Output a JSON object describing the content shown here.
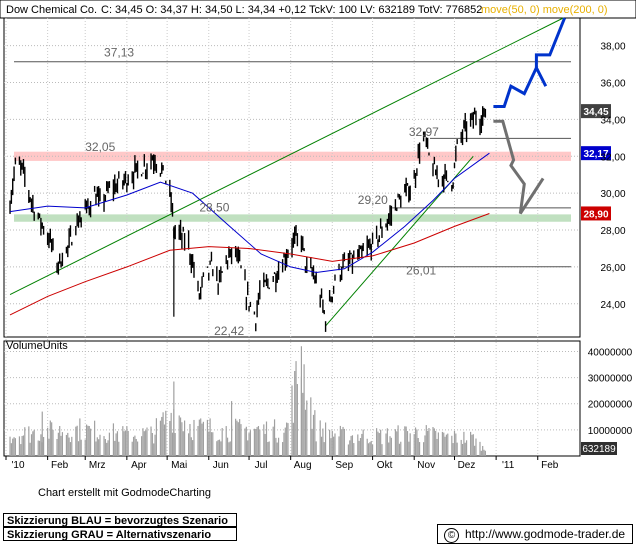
{
  "header": {
    "instrument": "Dow Chemical Co.",
    "quote": "C: 34,45 O: 34,37 H: 34,50 L: 34,34 +0,12 TckV: 100 LV: 632189 TotV: 776852",
    "ma_legend": "move(50, 0)  move(200, 0)"
  },
  "footer": {
    "credit": "Chart erstellt mit GodmodeCharting",
    "legend_blue": "Skizzierung BLAU = bevorzugtes Szenario",
    "legend_grey": "Skizzierung GRAU = Alternativszenario",
    "copyright_symbol": "©",
    "url": "http://www.godmode-trader.de"
  },
  "volume_panel": {
    "label": "VolumeUnits"
  },
  "colors": {
    "price": "#000000",
    "ma50": "#0000cc",
    "ma200": "#cc0000",
    "trend": "#008000",
    "resistance_band": "#ffc8c8",
    "support_band": "#c0e0c0",
    "scenario_blue": "#0033cc",
    "scenario_grey": "#707070",
    "last_price_tag": "#404040",
    "ma50_tag": "#0000cc",
    "ma200_tag": "#cc0000"
  },
  "chart_data": [
    {
      "type": "ohlc",
      "title": "Dow Chemical Co.",
      "y_axis_side": "right",
      "ylim": [
        22.2,
        39.5
      ],
      "y_ticks": [
        "24,00",
        "26,00",
        "28,00",
        "30,00",
        "32,00",
        "34,00",
        "36,00",
        "38,00"
      ],
      "x_ticks": [
        "'10",
        "Feb",
        "Mrz",
        "Apr",
        "Mai",
        "Jun",
        "Jul",
        "Aug",
        "Sep",
        "Okt",
        "Nov",
        "Dez",
        "'11",
        "Feb"
      ],
      "x_range": [
        "2010-01-01",
        "2011-02-28"
      ],
      "price_path_daily_close": [
        [
          "2010-01-04",
          29.5
        ],
        [
          "2010-01-08",
          31.5
        ],
        [
          "2010-01-13",
          31.3
        ],
        [
          "2010-01-20",
          29.6
        ],
        [
          "2010-01-26",
          28.5
        ],
        [
          "2010-01-29",
          28.2
        ],
        [
          "2010-02-04",
          27.2
        ],
        [
          "2010-02-08",
          26.1
        ],
        [
          "2010-02-16",
          27.0
        ],
        [
          "2010-02-22",
          28.3
        ],
        [
          "2010-03-01",
          29.0
        ],
        [
          "2010-03-08",
          29.9
        ],
        [
          "2010-03-12",
          29.4
        ],
        [
          "2010-03-19",
          30.2
        ],
        [
          "2010-03-26",
          30.5
        ],
        [
          "2010-04-01",
          30.8
        ],
        [
          "2010-04-08",
          31.2
        ],
        [
          "2010-04-15",
          31.5
        ],
        [
          "2010-04-20",
          31.9
        ],
        [
          "2010-04-23",
          31.8
        ],
        [
          "2010-04-27",
          31.2
        ],
        [
          "2010-04-30",
          30.7
        ],
        [
          "2010-05-04",
          29.6
        ],
        [
          "2010-05-06",
          28.0
        ],
        [
          "2010-05-11",
          27.7
        ],
        [
          "2010-05-17",
          27.2
        ],
        [
          "2010-05-21",
          25.8
        ],
        [
          "2010-05-25",
          24.4
        ],
        [
          "2010-05-28",
          25.3
        ],
        [
          "2010-06-03",
          26.0
        ],
        [
          "2010-06-09",
          25.1
        ],
        [
          "2010-06-14",
          26.4
        ],
        [
          "2010-06-21",
          26.8
        ],
        [
          "2010-06-25",
          25.8
        ],
        [
          "2010-06-30",
          24.3
        ],
        [
          "2010-07-06",
          23.3
        ],
        [
          "2010-07-09",
          24.6
        ],
        [
          "2010-07-15",
          25.1
        ],
        [
          "2010-07-21",
          25.6
        ],
        [
          "2010-07-27",
          26.4
        ],
        [
          "2010-08-03",
          27.4
        ],
        [
          "2010-08-09",
          27.5
        ],
        [
          "2010-08-13",
          25.9
        ],
        [
          "2010-08-18",
          25.6
        ],
        [
          "2010-08-24",
          24.1
        ],
        [
          "2010-08-27",
          23.2
        ],
        [
          "2010-08-31",
          24.3
        ],
        [
          "2010-09-03",
          25.4
        ],
        [
          "2010-09-09",
          26.0
        ],
        [
          "2010-09-15",
          26.3
        ],
        [
          "2010-09-21",
          26.5
        ],
        [
          "2010-09-28",
          27.0
        ],
        [
          "2010-10-04",
          27.5
        ],
        [
          "2010-10-08",
          28.0
        ],
        [
          "2010-10-14",
          28.7
        ],
        [
          "2010-10-20",
          29.6
        ],
        [
          "2010-10-26",
          30.0
        ],
        [
          "2010-11-01",
          30.6
        ],
        [
          "2010-11-05",
          32.5
        ],
        [
          "2010-11-09",
          32.9
        ],
        [
          "2010-11-12",
          32.0
        ],
        [
          "2010-11-17",
          31.0
        ],
        [
          "2010-11-23",
          30.9
        ],
        [
          "2010-11-26",
          30.7
        ],
        [
          "2010-11-30",
          30.8
        ],
        [
          "2010-12-03",
          32.5
        ],
        [
          "2010-12-08",
          33.4
        ],
        [
          "2010-12-13",
          33.8
        ],
        [
          "2010-12-17",
          34.2
        ],
        [
          "2010-12-21",
          34.1
        ],
        [
          "2010-12-27",
          34.45
        ]
      ],
      "series": [
        {
          "name": "move(50, 0)",
          "kind": "moving_average",
          "points": [
            [
              "2010-01-04",
              29.0
            ],
            [
              "2010-02-01",
              29.3
            ],
            [
              "2010-03-01",
              29.2
            ],
            [
              "2010-04-01",
              29.9
            ],
            [
              "2010-04-26",
              30.6
            ],
            [
              "2010-05-20",
              30.0
            ],
            [
              "2010-06-15",
              28.3
            ],
            [
              "2010-07-10",
              26.7
            ],
            [
              "2010-08-01",
              26.0
            ],
            [
              "2010-08-20",
              25.7
            ],
            [
              "2010-09-10",
              25.9
            ],
            [
              "2010-10-01",
              26.8
            ],
            [
              "2010-10-25",
              28.2
            ],
            [
              "2010-11-15",
              29.6
            ],
            [
              "2010-12-01",
              30.8
            ],
            [
              "2010-12-27",
              32.17
            ]
          ]
        },
        {
          "name": "move(200, 0)",
          "kind": "moving_average",
          "points": [
            [
              "2010-01-04",
              23.4
            ],
            [
              "2010-02-01",
              24.4
            ],
            [
              "2010-03-01",
              25.2
            ],
            [
              "2010-04-01",
              26.0
            ],
            [
              "2010-05-03",
              26.9
            ],
            [
              "2010-06-01",
              27.1
            ],
            [
              "2010-07-01",
              27.0
            ],
            [
              "2010-08-01",
              26.7
            ],
            [
              "2010-09-01",
              26.3
            ],
            [
              "2010-10-01",
              26.6
            ],
            [
              "2010-11-01",
              27.3
            ],
            [
              "2010-12-01",
              28.2
            ],
            [
              "2010-12-27",
              28.9
            ]
          ]
        }
      ],
      "price_annotations": [
        {
          "label": "37,13",
          "value": 37.13,
          "kind": "horizontal_line"
        },
        {
          "label": "32,05",
          "value": 32.05,
          "kind": "resistance_zone",
          "zone": [
            31.75,
            32.25
          ]
        },
        {
          "label": "32,97",
          "value": 32.97,
          "kind": "horizontal_line"
        },
        {
          "label": "29,20",
          "value": 29.2,
          "kind": "horizontal_line"
        },
        {
          "label": "28,50",
          "value": 28.5,
          "kind": "support_zone",
          "zone": [
            28.45,
            28.85
          ]
        },
        {
          "label": "26,01",
          "value": 26.01,
          "kind": "horizontal_line"
        },
        {
          "label": "22,42",
          "value": 22.42,
          "kind": "low_marker"
        }
      ],
      "trendlines": [
        {
          "from": [
            "2010-01-04",
            24.5
          ],
          "to": [
            "2011-02-20",
            39.5
          ]
        },
        {
          "from": [
            "2010-08-27",
            22.8
          ],
          "to": [
            "2010-12-15",
            32.0
          ]
        }
      ],
      "scenario_sketches": [
        {
          "name": "blau",
          "points": [
            [
              "2010-12-30",
              34.7
            ],
            [
              "2011-01-07",
              34.7
            ],
            [
              "2011-01-12",
              35.8
            ],
            [
              "2011-01-22",
              35.4
            ],
            [
              "2011-01-31",
              36.8
            ],
            [
              "2011-02-07",
              35.8
            ]
          ]
        },
        {
          "name": "blau",
          "points": [
            [
              "2011-01-31",
              36.8
            ],
            [
              "2011-01-31",
              37.5
            ],
            [
              "2011-02-10",
              37.5
            ],
            [
              "2011-02-21",
              39.5
            ]
          ]
        },
        {
          "name": "grau",
          "points": [
            [
              "2010-12-30",
              33.9
            ],
            [
              "2011-01-06",
              33.9
            ],
            [
              "2011-01-14",
              31.8
            ],
            [
              "2011-01-12",
              31.5
            ],
            [
              "2011-01-22",
              30.5
            ],
            [
              "2011-01-19",
              28.9
            ],
            [
              "2011-02-05",
              30.8
            ]
          ]
        }
      ],
      "value_tags": [
        {
          "label": "34,45",
          "value": 34.45,
          "color_key": "last_price_tag"
        },
        {
          "label": "32,17",
          "value": 32.17,
          "color_key": "ma50_tag"
        },
        {
          "label": "28,90",
          "value": 28.9,
          "color_key": "ma200_tag"
        }
      ]
    },
    {
      "type": "bar",
      "title": "VolumeUnits",
      "ylim": [
        0,
        44000000
      ],
      "y_ticks": [
        "10000000",
        "20000000",
        "30000000",
        "40000000"
      ],
      "last_volume_tag": "632189",
      "volume_profile": [
        [
          "2010-01-04",
          9500000
        ],
        [
          "2010-02-01",
          11000000
        ],
        [
          "2010-02-26",
          12000000
        ],
        [
          "2010-03-31",
          9500000
        ],
        [
          "2010-04-20",
          10000000
        ],
        [
          "2010-05-06",
          20000000
        ],
        [
          "2010-05-20",
          13000000
        ],
        [
          "2010-06-15",
          11500000
        ],
        [
          "2010-07-06",
          12000000
        ],
        [
          "2010-07-28",
          11000000
        ],
        [
          "2010-08-09",
          42000000
        ],
        [
          "2010-08-20",
          12000000
        ],
        [
          "2010-09-10",
          9000000
        ],
        [
          "2010-10-08",
          9000000
        ],
        [
          "2010-11-03",
          10500000
        ],
        [
          "2010-11-25",
          8500000
        ],
        [
          "2010-12-15",
          8000000
        ],
        [
          "2010-12-27",
          632189
        ]
      ]
    }
  ]
}
